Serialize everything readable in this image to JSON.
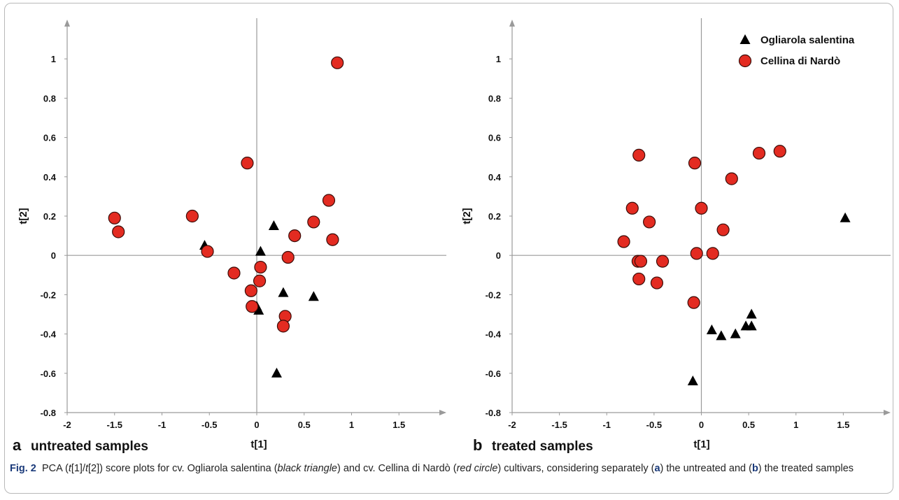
{
  "chart_data": [
    {
      "type": "scatter",
      "panel_letter": "a",
      "panel_title": "untreated samples",
      "xlabel": "t[1]",
      "ylabel": "t[2]",
      "xlim": [
        -2,
        2
      ],
      "ylim": [
        -0.8,
        1.2
      ],
      "xticks": [
        -2,
        -1.5,
        -1,
        -0.5,
        0,
        0.5,
        1,
        1.5
      ],
      "yticks": [
        -0.8,
        -0.6,
        -0.4,
        -0.2,
        0,
        0.2,
        0.4,
        0.6,
        0.8,
        1
      ],
      "series": [
        {
          "name": "Ogliarola salentina",
          "marker": "triangle",
          "color": "#000000",
          "points": [
            [
              -0.55,
              0.05
            ],
            [
              0.18,
              0.15
            ],
            [
              0.04,
              0.02
            ],
            [
              0.28,
              -0.19
            ],
            [
              0.6,
              -0.21
            ],
            [
              0.0,
              -0.26
            ],
            [
              0.02,
              -0.28
            ],
            [
              0.21,
              -0.6
            ]
          ]
        },
        {
          "name": "Cellina di Nardò",
          "marker": "circle",
          "color": "#e32b21",
          "points": [
            [
              -1.5,
              0.19
            ],
            [
              -1.46,
              0.12
            ],
            [
              -0.68,
              0.2
            ],
            [
              -0.52,
              0.02
            ],
            [
              -0.1,
              0.47
            ],
            [
              0.85,
              0.98
            ],
            [
              0.76,
              0.28
            ],
            [
              0.6,
              0.17
            ],
            [
              0.4,
              0.1
            ],
            [
              0.8,
              0.08
            ],
            [
              0.33,
              -0.01
            ],
            [
              0.04,
              -0.06
            ],
            [
              -0.24,
              -0.09
            ],
            [
              0.03,
              -0.13
            ],
            [
              -0.06,
              -0.18
            ],
            [
              -0.05,
              -0.26
            ],
            [
              0.3,
              -0.31
            ],
            [
              0.28,
              -0.36
            ]
          ]
        }
      ]
    },
    {
      "type": "scatter",
      "panel_letter": "b",
      "panel_title": "treated samples",
      "xlabel": "t[1]",
      "ylabel": "t[2]",
      "xlim": [
        -2,
        2
      ],
      "ylim": [
        -0.8,
        1.2
      ],
      "xticks": [
        -2,
        -1.5,
        -1,
        -0.5,
        0,
        0.5,
        1,
        1.5
      ],
      "yticks": [
        -0.8,
        -0.6,
        -0.4,
        -0.2,
        0,
        0.2,
        0.4,
        0.6,
        0.8,
        1
      ],
      "legend": [
        {
          "label": "Ogliarola salentina",
          "marker": "triangle",
          "color": "#000000"
        },
        {
          "label": "Cellina di Nardò",
          "marker": "circle",
          "color": "#e32b21"
        }
      ],
      "legend_position": "top-right",
      "series": [
        {
          "name": "Ogliarola salentina",
          "marker": "triangle",
          "color": "#000000",
          "points": [
            [
              1.52,
              0.19
            ],
            [
              0.53,
              -0.3
            ],
            [
              0.47,
              -0.36
            ],
            [
              0.53,
              -0.36
            ],
            [
              0.11,
              -0.38
            ],
            [
              0.21,
              -0.41
            ],
            [
              0.36,
              -0.4
            ],
            [
              -0.09,
              -0.64
            ]
          ]
        },
        {
          "name": "Cellina di Nardò",
          "marker": "circle",
          "color": "#e32b21",
          "points": [
            [
              -0.66,
              0.51
            ],
            [
              -0.07,
              0.47
            ],
            [
              0.61,
              0.52
            ],
            [
              0.83,
              0.53
            ],
            [
              0.32,
              0.39
            ],
            [
              -0.73,
              0.24
            ],
            [
              0.0,
              0.24
            ],
            [
              -0.55,
              0.17
            ],
            [
              0.23,
              0.13
            ],
            [
              -0.82,
              0.07
            ],
            [
              0.12,
              0.01
            ],
            [
              -0.05,
              0.01
            ],
            [
              -0.67,
              -0.03
            ],
            [
              -0.64,
              -0.03
            ],
            [
              -0.41,
              -0.03
            ],
            [
              -0.66,
              -0.12
            ],
            [
              -0.47,
              -0.14
            ],
            [
              -0.08,
              -0.24
            ]
          ]
        }
      ]
    }
  ],
  "caption": {
    "fig_label": "Fig. 2",
    "part1": "PCA (",
    "t1": "t",
    "part2": "[1]/",
    "t2": "t",
    "part3": "[2]) score plots for cv. Ogliarola salentina (",
    "black_triangle": "black triangle",
    "part4": ") and cv. Cellina di Nardò (",
    "red_circle": "red circle",
    "part5": ") cultivars, considering separately (",
    "a": "a",
    "part6": ") the untreated and (",
    "b": "b",
    "part7": ") the treated samples"
  }
}
